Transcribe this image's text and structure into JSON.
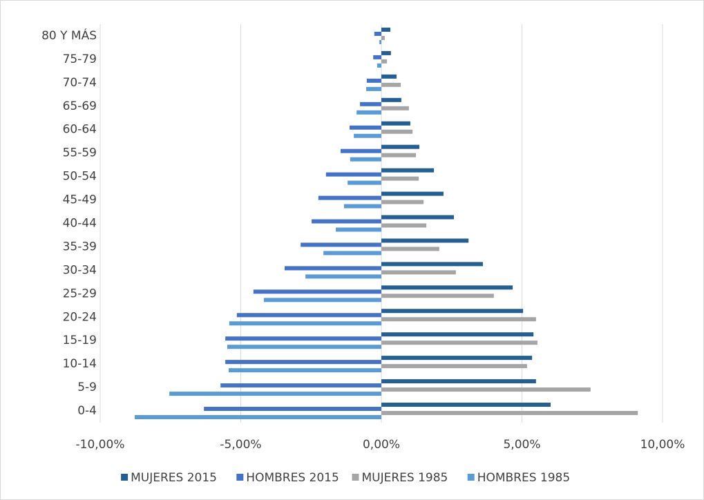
{
  "chart_data": {
    "type": "bar",
    "orientation": "horizontal",
    "categories": [
      "0-4",
      "5-9",
      "10-14",
      "15-19",
      "20-24",
      "25-29",
      "30-34",
      "35-39",
      "40-44",
      "45-49",
      "50-54",
      "55-59",
      "60-64",
      "65-69",
      "70-74",
      "75-79",
      "80 Y MÁS"
    ],
    "series": [
      {
        "name": "MUJERES 2015",
        "color": "#255e91",
        "values": [
          6.02,
          5.5,
          5.36,
          5.41,
          5.04,
          4.67,
          3.61,
          3.1,
          2.58,
          2.21,
          1.87,
          1.35,
          1.03,
          0.71,
          0.54,
          0.34,
          0.32
        ]
      },
      {
        "name": "HOMBRES 2015",
        "color": "#4472c4",
        "values": [
          -6.31,
          -5.72,
          -5.55,
          -5.55,
          -5.14,
          -4.55,
          -3.44,
          -2.87,
          -2.48,
          -2.24,
          -1.97,
          -1.45,
          -1.13,
          -0.76,
          -0.52,
          -0.29,
          -0.25
        ]
      },
      {
        "name": "MUJERES 1985",
        "color": "#a5a5a5",
        "values": [
          9.12,
          7.44,
          5.18,
          5.55,
          5.5,
          4.0,
          2.65,
          2.06,
          1.6,
          1.5,
          1.33,
          1.23,
          1.11,
          0.98,
          0.69,
          0.2,
          0.12
        ]
      },
      {
        "name": "HOMBRES 1985",
        "color": "#5b9bd5",
        "values": [
          -8.77,
          -7.54,
          -5.43,
          -5.48,
          -5.41,
          -4.18,
          -2.7,
          -2.06,
          -1.62,
          -1.33,
          -1.2,
          -1.11,
          -0.98,
          -0.88,
          -0.54,
          -0.15,
          -0.07
        ]
      }
    ],
    "xlim": [
      -10,
      10
    ],
    "xticks": [
      {
        "value": -10,
        "label": "-10,00%"
      },
      {
        "value": -5,
        "label": "-5,00%"
      },
      {
        "value": 0,
        "label": "0,00%"
      },
      {
        "value": 5,
        "label": "5,00%"
      },
      {
        "value": 10,
        "label": "10,00%"
      }
    ],
    "grid": true,
    "legend": "bottom"
  }
}
